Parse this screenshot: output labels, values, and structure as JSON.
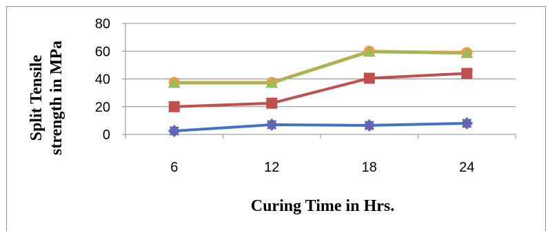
{
  "chart_data": {
    "type": "line",
    "title": "",
    "xlabel": "Curing Time in Hrs.",
    "ylabel": [
      "Split Tensile",
      "strength in MPa"
    ],
    "categories": [
      "6",
      "12",
      "18",
      "24"
    ],
    "ylim": [
      0,
      80
    ],
    "yticks": [
      0,
      20,
      40,
      60,
      80
    ],
    "grid": true,
    "legend": "none",
    "series": [
      {
        "values": [
          2.5,
          7,
          6.5,
          8
        ],
        "color": "#4472c4",
        "marker": "x-diamond"
      },
      {
        "values": [
          20,
          22.5,
          40.5,
          44
        ],
        "color": "#c0504d",
        "marker": "square"
      },
      {
        "values": [
          37.5,
          37.5,
          60,
          59
        ],
        "color": "#f79646",
        "marker": "circle"
      },
      {
        "values": [
          37,
          37,
          59.5,
          58.5
        ],
        "color": "#9bbb59",
        "marker": "triangle"
      }
    ]
  }
}
